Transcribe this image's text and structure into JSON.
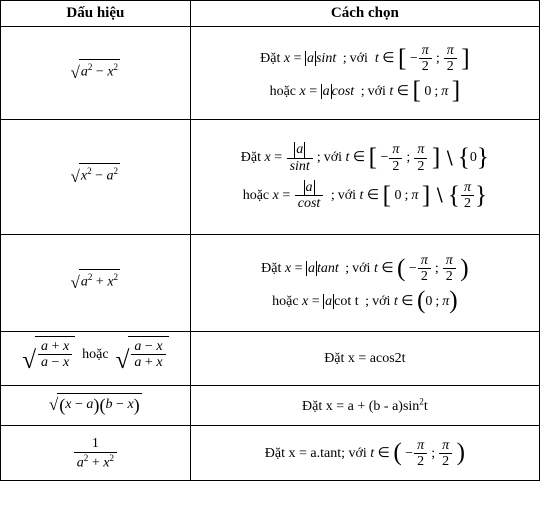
{
  "header": {
    "col1": "Dấu hiệu",
    "col2": "Cách chọn"
  },
  "label": {
    "dat": "Đặt",
    "voi": "với",
    "hoac": "hoặc"
  },
  "sym": {
    "x": "x",
    "a": "a",
    "t": "t",
    "pi": "π",
    "eq": "=",
    "in": "∈",
    "minus": "−",
    "plus": "+",
    "two": "2",
    "one": "1",
    "b": "b",
    "semi": ";",
    "zero": "0"
  },
  "fn": {
    "sint": "sint",
    "cost": "cost",
    "tant": "tant",
    "cott": "cot t",
    "tanv": "tant",
    "acos2t": "acos2t",
    "sin2t": "sin"
  },
  "rows": {
    "r4": {
      "rhs": "Đặt x = acos2t"
    },
    "r5": {
      "rhs_a": "Đặt  x = a + (b - a)sin",
      "rhs_b": "t"
    },
    "r6": {
      "rhs": "Đặt x = a.tant; với"
    }
  },
  "style": {
    "text_color": "#000000",
    "border_color": "#000000",
    "background": "#ffffff",
    "base_fontsize": 14,
    "header_fontsize": 15
  }
}
